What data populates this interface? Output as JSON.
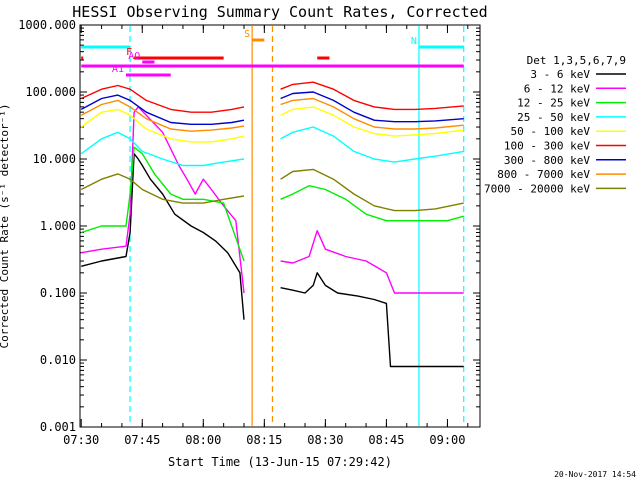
{
  "chart_data": {
    "type": "line",
    "title": "HESSI Observing Summary Count Rates, Corrected",
    "xlabel": "Start Time (13-Jun-15 07:29:42)",
    "ylabel": "Corrected Count Rate (s⁻¹ detector⁻¹)",
    "y_scale": "log",
    "ylim": [
      0.001,
      1000
    ],
    "y_ticks": [
      {
        "v": 0.001,
        "label": "0.001"
      },
      {
        "v": 0.01,
        "label": "0.010"
      },
      {
        "v": 0.1,
        "label": "0.100"
      },
      {
        "v": 1,
        "label": "1.000"
      },
      {
        "v": 10,
        "label": "10.000"
      },
      {
        "v": 100,
        "label": "100.000"
      },
      {
        "v": 1000,
        "label": "1000.000"
      }
    ],
    "xlim": [
      "07:29:42",
      "09:08:00"
    ],
    "x_ticks": [
      "07:30",
      "07:45",
      "08:00",
      "08:15",
      "08:30",
      "08:45",
      "09:00"
    ],
    "legend_header": "Det 1,3,5,6,7,9",
    "legend_position": "right",
    "series": [
      {
        "name": "3 - 6 keV",
        "color": "#000000",
        "points": [
          [
            "07:30",
            0.25
          ],
          [
            "07:35",
            0.3
          ],
          [
            "07:41",
            0.35
          ],
          [
            "07:42",
            0.8
          ],
          [
            "07:43",
            12
          ],
          [
            "07:44",
            10
          ],
          [
            "07:45",
            8
          ],
          [
            "07:47",
            5
          ],
          [
            "07:50",
            3
          ],
          [
            "07:53",
            1.5
          ],
          [
            "07:57",
            1.0
          ],
          [
            "08:00",
            0.8
          ],
          [
            "08:03",
            0.6
          ],
          [
            "08:06",
            0.4
          ],
          [
            "08:09",
            0.2
          ],
          [
            "08:10",
            0.04
          ],
          null,
          [
            "08:19",
            0.12
          ],
          [
            "08:22",
            0.11
          ],
          [
            "08:25",
            0.1
          ],
          [
            "08:27",
            0.13
          ],
          [
            "08:28",
            0.2
          ],
          [
            "08:30",
            0.13
          ],
          [
            "08:33",
            0.1
          ],
          [
            "08:38",
            0.09
          ],
          [
            "08:42",
            0.08
          ],
          [
            "08:45",
            0.07
          ],
          [
            "08:46",
            0.008
          ],
          [
            "08:50",
            0.008
          ],
          [
            "08:55",
            0.008
          ],
          [
            "09:00",
            0.008
          ],
          [
            "09:04",
            0.008
          ]
        ]
      },
      {
        "name": "6 - 12 keV",
        "color": "#ff00ff",
        "points": [
          [
            "07:30",
            0.4
          ],
          [
            "07:35",
            0.45
          ],
          [
            "07:41",
            0.5
          ],
          [
            "07:42",
            1.5
          ],
          [
            "07:43",
            50
          ],
          [
            "07:44",
            60
          ],
          [
            "07:46",
            45
          ],
          [
            "07:50",
            25
          ],
          [
            "07:54",
            8
          ],
          [
            "07:56",
            5
          ],
          [
            "07:58",
            3
          ],
          [
            "08:00",
            5
          ],
          [
            "08:02",
            3.5
          ],
          [
            "08:05",
            2
          ],
          [
            "08:08",
            1.2
          ],
          [
            "08:10",
            0.1
          ],
          null,
          [
            "08:19",
            0.3
          ],
          [
            "08:22",
            0.28
          ],
          [
            "08:26",
            0.35
          ],
          [
            "08:28",
            0.85
          ],
          [
            "08:30",
            0.45
          ],
          [
            "08:35",
            0.35
          ],
          [
            "08:40",
            0.3
          ],
          [
            "08:45",
            0.2
          ],
          [
            "08:47",
            0.1
          ],
          [
            "09:00",
            0.1
          ],
          [
            "09:04",
            0.1
          ]
        ]
      },
      {
        "name": "12 - 25 keV",
        "color": "#00ee00",
        "points": [
          [
            "07:30",
            0.8
          ],
          [
            "07:35",
            1.0
          ],
          [
            "07:41",
            1.0
          ],
          [
            "07:42",
            3
          ],
          [
            "07:43",
            15
          ],
          [
            "07:45",
            12
          ],
          [
            "07:48",
            6
          ],
          [
            "07:52",
            3
          ],
          [
            "07:55",
            2.5
          ],
          [
            "08:00",
            2.5
          ],
          [
            "08:05",
            2.2
          ],
          [
            "08:10",
            0.3
          ],
          null,
          [
            "08:19",
            2.5
          ],
          [
            "08:22",
            3
          ],
          [
            "08:26",
            4
          ],
          [
            "08:30",
            3.5
          ],
          [
            "08:35",
            2.5
          ],
          [
            "08:40",
            1.5
          ],
          [
            "08:45",
            1.2
          ],
          [
            "08:50",
            1.2
          ],
          [
            "08:55",
            1.2
          ],
          [
            "09:00",
            1.2
          ],
          [
            "09:04",
            1.4
          ]
        ]
      },
      {
        "name": "25 - 50 keV",
        "color": "#00ffff",
        "points": [
          [
            "07:30",
            12
          ],
          [
            "07:35",
            20
          ],
          [
            "07:39",
            25
          ],
          [
            "07:42",
            20
          ],
          [
            "07:45",
            13
          ],
          [
            "07:50",
            10
          ],
          [
            "07:55",
            8
          ],
          [
            "08:00",
            8
          ],
          [
            "08:05",
            9
          ],
          [
            "08:10",
            10
          ],
          null,
          [
            "08:19",
            20
          ],
          [
            "08:22",
            25
          ],
          [
            "08:27",
            30
          ],
          [
            "08:32",
            22
          ],
          [
            "08:37",
            13
          ],
          [
            "08:42",
            10
          ],
          [
            "08:47",
            9
          ],
          [
            "08:52",
            10
          ],
          [
            "08:57",
            11
          ],
          [
            "09:04",
            13
          ]
        ]
      },
      {
        "name": "50 - 100 keV",
        "color": "#ffff00",
        "points": [
          [
            "07:30",
            30
          ],
          [
            "07:35",
            50
          ],
          [
            "07:39",
            55
          ],
          [
            "07:42",
            45
          ],
          [
            "07:46",
            28
          ],
          [
            "07:52",
            20
          ],
          [
            "07:57",
            18
          ],
          [
            "08:02",
            18
          ],
          [
            "08:07",
            20
          ],
          [
            "08:10",
            22
          ],
          null,
          [
            "08:19",
            45
          ],
          [
            "08:22",
            55
          ],
          [
            "08:27",
            60
          ],
          [
            "08:32",
            45
          ],
          [
            "08:37",
            30
          ],
          [
            "08:42",
            24
          ],
          [
            "08:47",
            22
          ],
          [
            "08:52",
            23
          ],
          [
            "08:57",
            24
          ],
          [
            "09:04",
            27
          ]
        ]
      },
      {
        "name": "100 - 300 keV",
        "color": "#ff0000",
        "points": [
          [
            "07:30",
            80
          ],
          [
            "07:35",
            110
          ],
          [
            "07:39",
            125
          ],
          [
            "07:42",
            110
          ],
          [
            "07:46",
            75
          ],
          [
            "07:52",
            55
          ],
          [
            "07:57",
            50
          ],
          [
            "08:02",
            50
          ],
          [
            "08:07",
            55
          ],
          [
            "08:10",
            60
          ],
          null,
          [
            "08:19",
            110
          ],
          [
            "08:22",
            130
          ],
          [
            "08:27",
            140
          ],
          [
            "08:32",
            110
          ],
          [
            "08:37",
            75
          ],
          [
            "08:42",
            60
          ],
          [
            "08:47",
            55
          ],
          [
            "08:52",
            55
          ],
          [
            "08:57",
            57
          ],
          [
            "09:04",
            62
          ]
        ]
      },
      {
        "name": "300 - 800 keV",
        "color": "#0000cc",
        "points": [
          [
            "07:30",
            55
          ],
          [
            "07:35",
            80
          ],
          [
            "07:39",
            90
          ],
          [
            "07:42",
            75
          ],
          [
            "07:46",
            50
          ],
          [
            "07:52",
            35
          ],
          [
            "07:57",
            33
          ],
          [
            "08:02",
            33
          ],
          [
            "08:07",
            35
          ],
          [
            "08:10",
            38
          ],
          null,
          [
            "08:19",
            80
          ],
          [
            "08:22",
            95
          ],
          [
            "08:27",
            100
          ],
          [
            "08:32",
            75
          ],
          [
            "08:37",
            50
          ],
          [
            "08:42",
            38
          ],
          [
            "08:47",
            36
          ],
          [
            "08:52",
            36
          ],
          [
            "08:57",
            37
          ],
          [
            "09:04",
            40
          ]
        ]
      },
      {
        "name": "800 - 7000 keV",
        "color": "#ff8c00",
        "points": [
          [
            "07:30",
            45
          ],
          [
            "07:35",
            65
          ],
          [
            "07:39",
            75
          ],
          [
            "07:42",
            60
          ],
          [
            "07:46",
            40
          ],
          [
            "07:52",
            28
          ],
          [
            "07:57",
            26
          ],
          [
            "08:02",
            27
          ],
          [
            "08:07",
            29
          ],
          [
            "08:10",
            31
          ],
          null,
          [
            "08:19",
            65
          ],
          [
            "08:22",
            75
          ],
          [
            "08:27",
            80
          ],
          [
            "08:32",
            60
          ],
          [
            "08:37",
            40
          ],
          [
            "08:42",
            30
          ],
          [
            "08:47",
            28
          ],
          [
            "08:52",
            28
          ],
          [
            "08:57",
            29
          ],
          [
            "09:04",
            32
          ]
        ]
      },
      {
        "name": "7000 - 20000 keV",
        "color": "#808000",
        "points": [
          [
            "07:30",
            3.5
          ],
          [
            "07:35",
            5
          ],
          [
            "07:39",
            6
          ],
          [
            "07:42",
            5
          ],
          [
            "07:45",
            3.5
          ],
          [
            "07:50",
            2.5
          ],
          [
            "07:55",
            2.2
          ],
          [
            "08:00",
            2.2
          ],
          [
            "08:05",
            2.5
          ],
          [
            "08:10",
            2.8
          ],
          null,
          [
            "08:19",
            5
          ],
          [
            "08:22",
            6.5
          ],
          [
            "08:27",
            7
          ],
          [
            "08:32",
            5
          ],
          [
            "08:37",
            3
          ],
          [
            "08:42",
            2
          ],
          [
            "08:47",
            1.7
          ],
          [
            "08:52",
            1.7
          ],
          [
            "08:57",
            1.8
          ],
          [
            "09:04",
            2.2
          ]
        ]
      }
    ],
    "flag_bars": [
      {
        "label": "N",
        "color": "#00ffff",
        "ranges": [
          [
            "07:30",
            "07:42"
          ],
          [
            "08:53",
            "09:04"
          ]
        ]
      },
      {
        "label": "F",
        "color": "#ff0000",
        "ranges": [
          [
            "07:30",
            "07:30"
          ],
          [
            "07:43",
            "08:05"
          ],
          [
            "08:28",
            "08:31"
          ]
        ]
      },
      {
        "label": "S",
        "color": "#ff8c00",
        "ranges": [
          [
            "08:12",
            "08:15"
          ]
        ]
      },
      {
        "label": "AQ",
        "color": "#ff00ff",
        "ranges": [
          [
            "07:45",
            "07:48"
          ]
        ]
      },
      {
        "label": "A1",
        "color": "#ff00ff",
        "ranges": [
          [
            "07:41",
            "07:52"
          ]
        ]
      },
      {
        "label": "",
        "color": "#ff00ff",
        "ranges": [
          [
            "07:30",
            "09:04"
          ]
        ]
      }
    ],
    "vlines": [
      {
        "t": "07:42",
        "color": "#00ffff",
        "style": "dashed"
      },
      {
        "t": "08:12",
        "color": "#ff8c00",
        "style": "solid"
      },
      {
        "t": "08:17",
        "color": "#ff8c00",
        "style": "dashed"
      },
      {
        "t": "08:53",
        "color": "#00ffff",
        "style": "solid"
      },
      {
        "t": "09:04",
        "color": "#00ffff",
        "style": "dashed"
      }
    ]
  },
  "footer": {
    "timestamp": "20-Nov-2017 14:54"
  }
}
